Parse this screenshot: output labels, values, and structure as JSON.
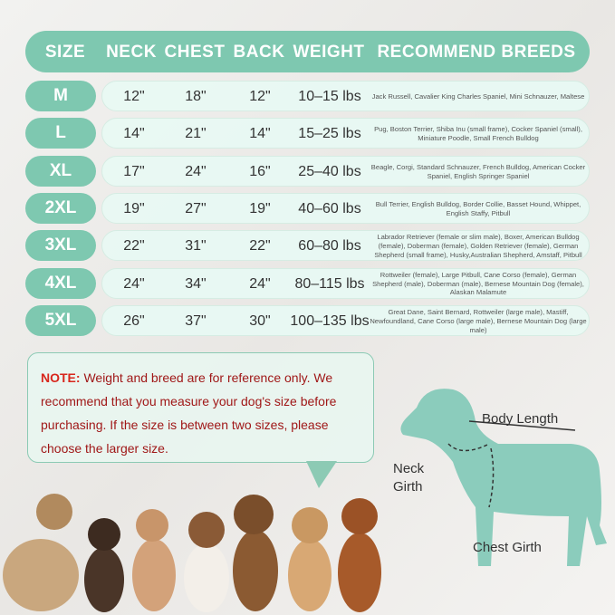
{
  "header": {
    "columns": [
      "SIZE",
      "NECK",
      "CHEST",
      "BACK",
      "WEIGHT",
      "RECOMMEND BREEDS"
    ]
  },
  "rows": [
    {
      "size": "M",
      "neck": "12\"",
      "chest": "18\"",
      "back": "12\"",
      "weight": "10–15 lbs",
      "breeds": "Jack Russell, Cavalier King Charles Spaniel, Mini Schnauzer, Maltese"
    },
    {
      "size": "L",
      "neck": "14\"",
      "chest": "21\"",
      "back": "14\"",
      "weight": "15–25 lbs",
      "breeds": "Pug, Boston Terrier, Shiba Inu (small frame), Cocker Spaniel (small), Miniature Poodle, Small French Bulldog"
    },
    {
      "size": "XL",
      "neck": "17\"",
      "chest": "24\"",
      "back": "16\"",
      "weight": "25–40 lbs",
      "breeds": "Beagle, Corgi, Standard Schnauzer, French Bulldog, American Cocker Spaniel, English Springer Spaniel"
    },
    {
      "size": "2XL",
      "neck": "19\"",
      "chest": "27\"",
      "back": "19\"",
      "weight": "40–60 lbs",
      "breeds": "Bull Terrier, English Bulldog, Border Collie,  Basset Hound, Whippet, English Staffy,  Pitbull"
    },
    {
      "size": "3XL",
      "neck": "22\"",
      "chest": "31\"",
      "back": "22\"",
      "weight": "60–80 lbs",
      "breeds": "Labrador Retriever (female or slim male), Boxer, American Bulldog (female), Doberman (female), Golden Retriever (female), German Shepherd (small frame), Husky,Australian Shepherd,  Amstaff,  Pitbull"
    },
    {
      "size": "4XL",
      "neck": "24\"",
      "chest": "34\"",
      "back": "24\"",
      "weight": "80–115 lbs",
      "breeds": "Rottweiler (female), Large Pitbull, Cane Corso (female), German Shepherd (male), Doberman (male), Bernese Mountain Dog (female), Alaskan Malamute"
    },
    {
      "size": "5XL",
      "neck": "26\"",
      "chest": "37\"",
      "back": "30\"",
      "weight": "100–135 lbs",
      "breeds": "Great Dane, Saint Bernard, Rottweiler (large male), Mastiff, Newfoundland, Cane Corso (large male), Bernese Mountain Dog (large male)"
    }
  ],
  "note": {
    "label": "NOTE:",
    "text": "Weight and breed are for reference only. We recommend that you measure your dog's size before purchasing. If the size is between two sizes, please choose the larger size."
  },
  "diagram": {
    "body_length": "Body Length",
    "neck_girth": "Neck Girth",
    "chest_girth": "Chest Girth"
  },
  "colors": {
    "accent": "#7ec8b0",
    "row_bg": "#e8faf4",
    "note_label": "#d8261c",
    "note_text": "#a01818"
  }
}
